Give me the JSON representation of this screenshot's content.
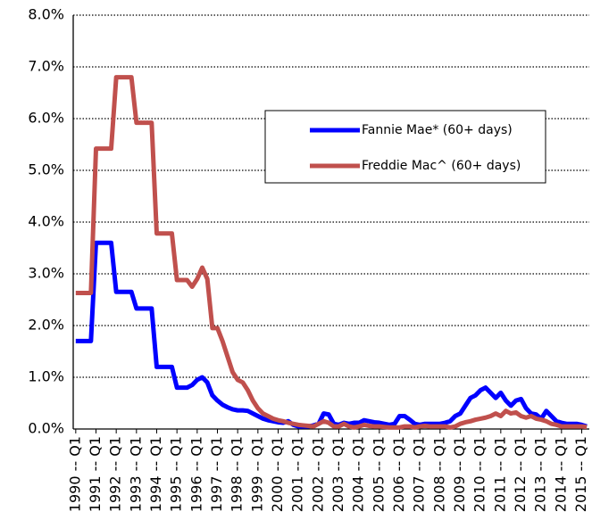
{
  "chart_data": {
    "type": "line",
    "categories": [
      "1990 -- Q1",
      null,
      null,
      null,
      "1991 -- Q1",
      null,
      null,
      null,
      "1992 -- Q1",
      null,
      null,
      null,
      "1993 -- Q1",
      null,
      null,
      null,
      "1994 -- Q1",
      null,
      null,
      null,
      "1995 -- Q1",
      null,
      null,
      null,
      "1996 -- Q1",
      null,
      null,
      null,
      "1997 -- Q1",
      null,
      null,
      null,
      "1998 -- Q1",
      null,
      null,
      null,
      "1999 -- Q1",
      null,
      null,
      null,
      "2000 -- Q1",
      null,
      null,
      null,
      "2001 -- Q1",
      null,
      null,
      null,
      "2002 -- Q1",
      null,
      null,
      null,
      "2003 -- Q1",
      null,
      null,
      null,
      "2004 -- Q1",
      null,
      null,
      null,
      "2005 -- Q1",
      null,
      null,
      null,
      "2006 -- Q1",
      null,
      null,
      null,
      "2007 -- Q1",
      null,
      null,
      null,
      "2008 -- Q1",
      null,
      null,
      null,
      "2009 -- Q1",
      null,
      null,
      null,
      "2010 -- Q1",
      null,
      null,
      null,
      "2011 -- Q1",
      null,
      null,
      null,
      "2012 -- Q1",
      null,
      null,
      null,
      "2013 -- Q1",
      null,
      null,
      null,
      "2014 -- Q1",
      null,
      null,
      null,
      "2015 -- Q1",
      null
    ],
    "series": [
      {
        "name": "Fannie Mae* (60+ days)",
        "color": "#0000ff",
        "values": [
          1.7,
          1.7,
          1.7,
          1.7,
          3.6,
          3.6,
          3.6,
          3.6,
          2.65,
          2.65,
          2.65,
          2.65,
          2.33,
          2.33,
          2.33,
          2.33,
          1.2,
          1.2,
          1.2,
          1.2,
          0.8,
          0.8,
          0.8,
          0.85,
          0.95,
          1.0,
          0.9,
          0.65,
          0.55,
          0.47,
          0.42,
          0.38,
          0.36,
          0.36,
          0.35,
          0.3,
          0.25,
          0.2,
          0.17,
          0.15,
          0.13,
          0.12,
          0.15,
          0.08,
          0.05,
          0.05,
          0.05,
          0.07,
          0.1,
          0.3,
          0.28,
          0.1,
          0.08,
          0.12,
          0.1,
          0.12,
          0.12,
          0.17,
          0.15,
          0.13,
          0.12,
          0.1,
          0.08,
          0.1,
          0.25,
          0.25,
          0.18,
          0.1,
          0.08,
          0.1,
          0.1,
          0.1,
          0.1,
          0.12,
          0.15,
          0.25,
          0.3,
          0.45,
          0.6,
          0.65,
          0.75,
          0.8,
          0.7,
          0.6,
          0.7,
          0.55,
          0.45,
          0.55,
          0.58,
          0.4,
          0.3,
          0.28,
          0.2,
          0.35,
          0.25,
          0.15,
          0.12,
          0.1,
          0.1,
          0.1,
          0.08,
          0.05
        ]
      },
      {
        "name": "Freddie Mac^ (60+ days)",
        "color": "#c0504d",
        "values": [
          2.63,
          2.63,
          2.63,
          2.63,
          5.42,
          5.42,
          5.42,
          5.42,
          6.8,
          6.8,
          6.8,
          6.8,
          5.92,
          5.92,
          5.92,
          5.92,
          3.78,
          3.78,
          3.78,
          3.78,
          2.88,
          2.88,
          2.88,
          2.75,
          2.9,
          3.12,
          2.9,
          1.95,
          1.95,
          1.7,
          1.4,
          1.1,
          0.95,
          0.9,
          0.75,
          0.55,
          0.4,
          0.3,
          0.25,
          0.2,
          0.17,
          0.15,
          0.12,
          0.1,
          0.08,
          0.07,
          0.06,
          0.05,
          0.1,
          0.15,
          0.12,
          0.05,
          0.05,
          0.1,
          0.05,
          0.03,
          0.05,
          0.08,
          0.06,
          0.05,
          0.05,
          0.04,
          0.03,
          0.03,
          0.03,
          0.05,
          0.05,
          0.03,
          0.05,
          0.06,
          0.05,
          0.05,
          0.05,
          0.05,
          0.03,
          0.05,
          0.1,
          0.13,
          0.15,
          0.18,
          0.2,
          0.22,
          0.25,
          0.3,
          0.25,
          0.35,
          0.3,
          0.32,
          0.25,
          0.22,
          0.25,
          0.2,
          0.18,
          0.15,
          0.1,
          0.08,
          0.05,
          0.05,
          0.05,
          0.05,
          0.05,
          0.04
        ]
      }
    ],
    "ylim": [
      0,
      8
    ],
    "yticks": [
      {
        "value": 0,
        "label": "0.0%"
      },
      {
        "value": 1,
        "label": "1.0%"
      },
      {
        "value": 2,
        "label": "2.0%"
      },
      {
        "value": 3,
        "label": "3.0%"
      },
      {
        "value": 4,
        "label": "4.0%"
      },
      {
        "value": 5,
        "label": "5.0%"
      },
      {
        "value": 6,
        "label": "6.0%"
      },
      {
        "value": 7,
        "label": "7.0%"
      },
      {
        "value": 8,
        "label": "8.0%"
      }
    ],
    "grid": true
  }
}
